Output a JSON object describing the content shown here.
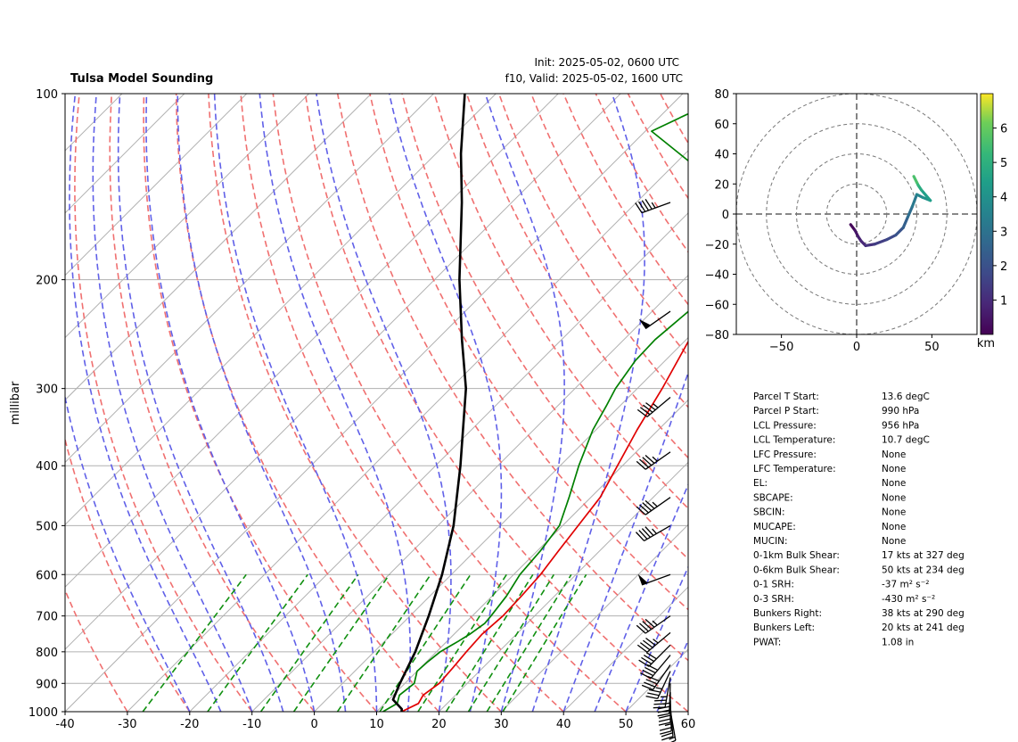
{
  "chart_data": [
    {
      "type": "line",
      "subtype": "skew-t log-p",
      "title": "Tulsa Model Sounding",
      "init_text": "Init: 2025-05-02, 0600 UTC",
      "valid_text": "f10, Valid: 2025-05-02, 1600 UTC",
      "xlabel": "",
      "ylabel": "millibar",
      "x_unit": "degC",
      "y_unit": "hPa",
      "xlim": [
        -40,
        60
      ],
      "ylim": [
        1000,
        100
      ],
      "y_scale": "log",
      "x_ticks": [
        -40,
        -30,
        -20,
        -10,
        0,
        10,
        20,
        30,
        40,
        50,
        60
      ],
      "y_ticks": [
        1000,
        900,
        800,
        700,
        600,
        500,
        400,
        300,
        200,
        100
      ],
      "grid": true,
      "series": [
        {
          "role": "temperature",
          "color": "#e00000",
          "points": [
            [
              1000,
              14
            ],
            [
              970,
              15.4
            ],
            [
              940,
              14.8
            ],
            [
              900,
              15.5
            ],
            [
              850,
              15.2
            ],
            [
              800,
              14.8
            ],
            [
              750,
              14.5
            ],
            [
              700,
              14.9
            ],
            [
              650,
              14.7
            ],
            [
              600,
              14.3
            ],
            [
              550,
              13.4
            ],
            [
              500,
              12.5
            ],
            [
              450,
              11.5
            ],
            [
              400,
              9.2
            ],
            [
              350,
              6.6
            ],
            [
              300,
              4.0
            ],
            [
              250,
              0.5
            ],
            [
              220,
              0.7
            ],
            [
              200,
              4.5
            ],
            [
              180,
              8
            ],
            [
              150,
              13.5
            ],
            [
              120,
              20
            ],
            [
              100,
              25
            ]
          ]
        },
        {
          "role": "dewpoint",
          "color": "#008000",
          "points": [
            [
              1000,
              11
            ],
            [
              970,
              12.0
            ],
            [
              940,
              11.0
            ],
            [
              900,
              11.5
            ],
            [
              860,
              10.0
            ],
            [
              830,
              10.2
            ],
            [
              800,
              10.6
            ],
            [
              770,
              11.8
            ],
            [
              750,
              12.5
            ],
            [
              720,
              13.2
            ],
            [
              700,
              13.0
            ],
            [
              650,
              12.3
            ],
            [
              600,
              11.0
            ],
            [
              550,
              10.5
            ],
            [
              500,
              9.5
            ],
            [
              450,
              6.5
            ],
            [
              400,
              3.0
            ],
            [
              350,
              -0.5
            ],
            [
              320,
              -2.2
            ],
            [
              300,
              -3.5
            ],
            [
              270,
              -4.8
            ],
            [
              250,
              -5.0
            ],
            [
              220,
              -4.0
            ],
            [
              200,
              -3.0
            ],
            [
              185,
              -3.0
            ],
            [
              170,
              -5.5
            ],
            [
              160,
              -8
            ],
            [
              140,
              -20
            ],
            [
              115,
              -39
            ],
            [
              108,
              -36
            ],
            [
              100,
              -25
            ]
          ]
        },
        {
          "role": "parcel",
          "color": "#000000",
          "points": [
            [
              1000,
              14
            ],
            [
              990,
              13.6
            ],
            [
              956,
              10.7
            ],
            [
              900,
              9.2
            ],
            [
              800,
              6.6
            ],
            [
              700,
              3.0
            ],
            [
              600,
              -1.5
            ],
            [
              500,
              -7.5
            ],
            [
              400,
              -16
            ],
            [
              300,
              -27.5
            ],
            [
              250,
              -36
            ],
            [
              200,
              -46
            ],
            [
              150,
              -58
            ],
            [
              125,
              -66
            ],
            [
              100,
              -75
            ]
          ]
        }
      ],
      "barbs": [
        {
          "p": 996,
          "dir": 170,
          "spd": 15
        },
        {
          "p": 980,
          "dir": 175,
          "spd": 20
        },
        {
          "p": 960,
          "dir": 178,
          "spd": 25
        },
        {
          "p": 930,
          "dir": 180,
          "spd": 30
        },
        {
          "p": 900,
          "dir": 182,
          "spd": 35
        },
        {
          "p": 880,
          "dir": 190,
          "spd": 35
        },
        {
          "p": 860,
          "dir": 205,
          "spd": 35
        },
        {
          "p": 840,
          "dir": 215,
          "spd": 40
        },
        {
          "p": 810,
          "dir": 220,
          "spd": 40
        },
        {
          "p": 780,
          "dir": 225,
          "spd": 40
        },
        {
          "p": 745,
          "dir": 230,
          "spd": 45
        },
        {
          "p": 700,
          "dir": 235,
          "spd": 45
        },
        {
          "p": 600,
          "dir": 250,
          "spd": 50
        },
        {
          "p": 500,
          "dir": 240,
          "spd": 45
        },
        {
          "p": 450,
          "dir": 235,
          "spd": 45
        },
        {
          "p": 380,
          "dir": 235,
          "spd": 45
        },
        {
          "p": 310,
          "dir": 230,
          "spd": 45
        },
        {
          "p": 225,
          "dir": 235,
          "spd": 50
        },
        {
          "p": 150,
          "dir": 250,
          "spd": 45
        }
      ]
    },
    {
      "type": "line",
      "subtype": "hodograph",
      "xlim": [
        -80,
        80
      ],
      "ylim": [
        -80,
        80
      ],
      "x_ticks": [
        -50,
        0,
        50
      ],
      "y_ticks": [
        -80,
        -60,
        -40,
        -20,
        0,
        20,
        40,
        60,
        80
      ],
      "rings": [
        20,
        40,
        60,
        80
      ],
      "colorbar": {
        "label": "km",
        "range": [
          0,
          7
        ],
        "ticks": [
          1,
          2,
          3,
          4,
          5,
          6
        ]
      },
      "points": [
        {
          "u": -4,
          "v": -7,
          "h": 0.0
        },
        {
          "u": -1,
          "v": -11,
          "h": 0.3
        },
        {
          "u": 1,
          "v": -15,
          "h": 0.6
        },
        {
          "u": 3,
          "v": -18,
          "h": 0.8
        },
        {
          "u": 6,
          "v": -21,
          "h": 1.0
        },
        {
          "u": 12,
          "v": -20,
          "h": 1.3
        },
        {
          "u": 20,
          "v": -17,
          "h": 1.6
        },
        {
          "u": 26,
          "v": -14,
          "h": 1.9
        },
        {
          "u": 31,
          "v": -9,
          "h": 2.2
        },
        {
          "u": 34,
          "v": -2,
          "h": 2.6
        },
        {
          "u": 37,
          "v": 5,
          "h": 3.0
        },
        {
          "u": 40,
          "v": 13,
          "h": 3.4
        },
        {
          "u": 44,
          "v": 11,
          "h": 3.8
        },
        {
          "u": 49,
          "v": 9,
          "h": 4.2
        },
        {
          "u": 43,
          "v": 16,
          "h": 4.6
        },
        {
          "u": 41,
          "v": 19,
          "h": 5.0
        },
        {
          "u": 40,
          "v": 21,
          "h": 5.4
        },
        {
          "u": 38,
          "v": 25,
          "h": 5.8
        }
      ]
    }
  ],
  "stats": [
    {
      "label": "Parcel T Start:",
      "value": "13.6 degC"
    },
    {
      "label": "Parcel P Start:",
      "value": "990 hPa"
    },
    {
      "label": "LCL Pressure:",
      "value": "956 hPa"
    },
    {
      "label": "LCL Temperature:",
      "value": "10.7 degC"
    },
    {
      "label": "LFC Pressure:",
      "value": "None"
    },
    {
      "label": "LFC Temperature:",
      "value": "None"
    },
    {
      "label": "EL:",
      "value": "None"
    },
    {
      "label": "SBCAPE:",
      "value": "None"
    },
    {
      "label": "SBCIN:",
      "value": "None"
    },
    {
      "label": "MUCAPE:",
      "value": "None"
    },
    {
      "label": "MUCIN:",
      "value": "None"
    },
    {
      "label": "0-1km Bulk Shear:",
      "value": "17 kts at 327 deg"
    },
    {
      "label": "0-6km Bulk Shear:",
      "value": "50 kts at 234 deg"
    },
    {
      "label": "0-1 SRH:",
      "value": "-37 m² s⁻²"
    },
    {
      "label": "0-3 SRH:",
      "value": "-430 m² s⁻²"
    },
    {
      "label": "Bunkers Right:",
      "value": "38 kts at 290 deg"
    },
    {
      "label": "Bunkers Left:",
      "value": "20 kts at 241 deg"
    },
    {
      "label": "PWAT:",
      "value": "1.08 in"
    }
  ],
  "colors": {
    "dry_adiabat": "#f07070",
    "moist_adiabat": "#6060e8",
    "mixing_ratio": "#109010",
    "isotherm": "#b0b0b0",
    "isobar": "#b0b0b0"
  }
}
